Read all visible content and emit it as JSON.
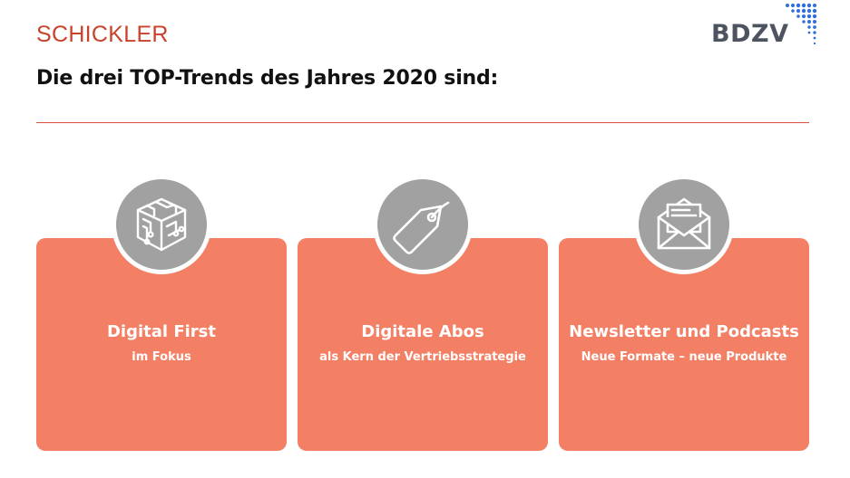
{
  "header": {
    "brand": "SCHICKLER",
    "logo": "BDZV",
    "headline": "Die drei TOP-Trends des Jahres 2020 sind:"
  },
  "cards": [
    {
      "title": "Digital First",
      "subtitle": "im Fokus",
      "icon": "circuit-cube-icon"
    },
    {
      "title": "Digitale Abos",
      "subtitle": "als Kern der Vertriebsstrategie",
      "icon": "price-tag-icon"
    },
    {
      "title": "Newsletter und Podcasts",
      "subtitle": "Neue Formate – neue Produkte",
      "icon": "envelope-letter-icon"
    }
  ],
  "colors": {
    "brand": "#c9422a",
    "rule": "#d9503a",
    "card": "#f37f64",
    "icon_circle": "#a1a1a1",
    "logo_text": "#4d5460",
    "logo_dots": "#2f6fd8"
  }
}
